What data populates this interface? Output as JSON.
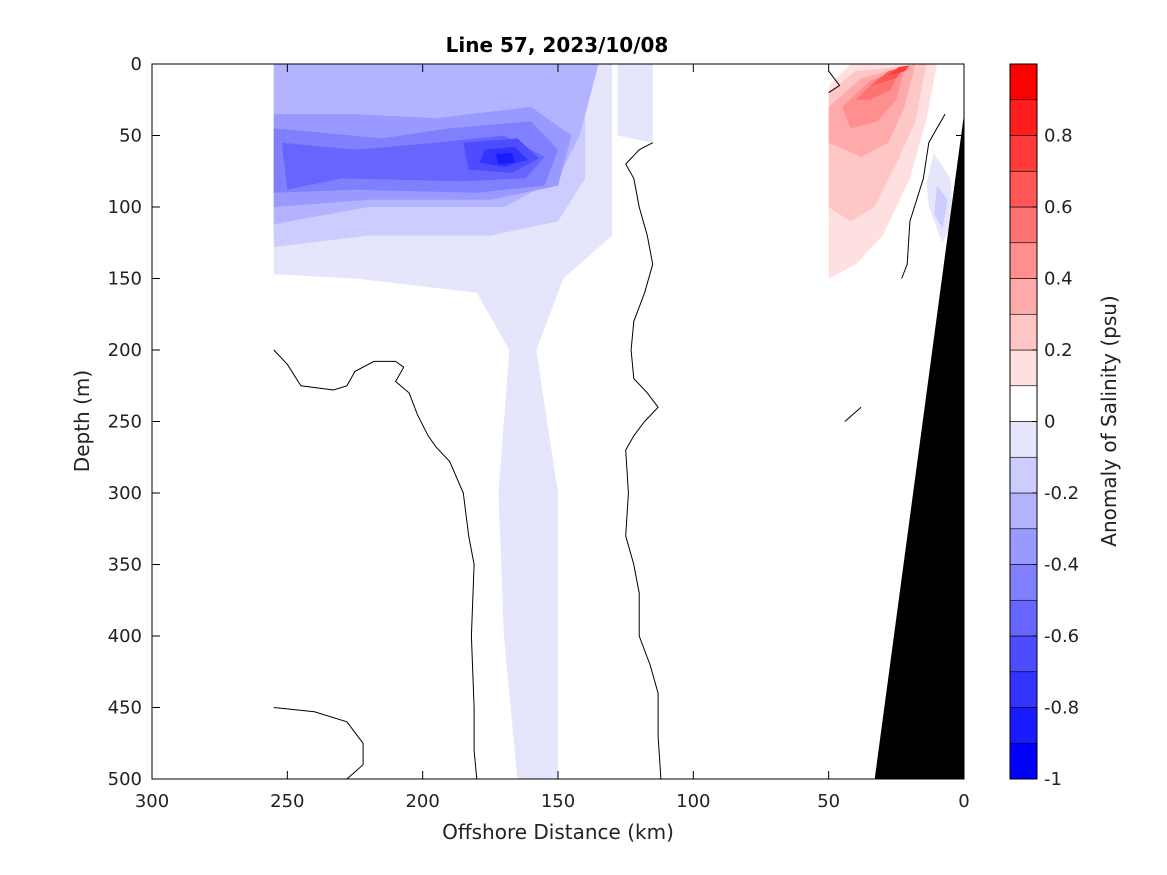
{
  "chart_data": {
    "type": "heatmap",
    "subtype": "filled-contour section",
    "title": "Line 57, 2023/10/08",
    "xlabel": "Offshore Distance (km)",
    "ylabel": "Depth (m)",
    "xlim": [
      300,
      0
    ],
    "x_reversed": true,
    "ylim": [
      0,
      500
    ],
    "y_reversed": true,
    "x_ticks": [
      "300",
      "250",
      "200",
      "150",
      "100",
      "50",
      "0"
    ],
    "x_tick_values": [
      300,
      250,
      200,
      150,
      100,
      50,
      0
    ],
    "y_ticks": [
      "0",
      "50",
      "100",
      "150",
      "200",
      "250",
      "300",
      "350",
      "400",
      "450",
      "500"
    ],
    "y_tick_values": [
      0,
      50,
      100,
      150,
      200,
      250,
      300,
      350,
      400,
      450,
      500
    ],
    "grid": false,
    "colorbar": {
      "label": "Anomaly of Salinity (psu)",
      "range": [
        -1,
        1
      ],
      "ticks": [
        "0.8",
        "0.6",
        "0.4",
        "0.2",
        "0",
        "-0.2",
        "-0.4",
        "-0.6",
        "-0.8",
        "-1"
      ],
      "tick_values": [
        0.8,
        0.6,
        0.4,
        0.2,
        0,
        -0.2,
        -0.4,
        -0.6,
        -0.8,
        -1
      ],
      "levels": [
        -1,
        -0.9,
        -0.8,
        -0.7,
        -0.6,
        -0.5,
        -0.4,
        -0.3,
        -0.2,
        -0.1,
        0,
        0.1,
        0.2,
        0.3,
        0.4,
        0.5,
        0.6,
        0.7,
        0.8,
        0.9,
        1
      ],
      "colors": [
        "#0000ff",
        "#1a1aff",
        "#3333ff",
        "#4d4dff",
        "#6666ff",
        "#8080ff",
        "#9999ff",
        "#b3b3ff",
        "#ccccff",
        "#e5e5fc",
        "#ffffff",
        "#ffffff",
        "#ffe0e0",
        "#ffc6c6",
        "#ffaaaa",
        "#ff8e8e",
        "#ff7272",
        "#ff5656",
        "#ff3a3a",
        "#ff1e1e",
        "#ff0000"
      ]
    },
    "seafloor_color": "#000000",
    "regions": [
      {
        "level": -0.1,
        "polygon": [
          [
            255,
            0
          ],
          [
            130,
            0
          ],
          [
            130,
            120
          ],
          [
            148,
            150
          ],
          [
            158,
            200
          ],
          [
            150,
            300
          ],
          [
            150,
            400
          ],
          [
            150,
            500
          ],
          [
            165,
            500
          ],
          [
            170,
            400
          ],
          [
            172,
            300
          ],
          [
            168,
            200
          ],
          [
            180,
            160
          ],
          [
            225,
            150
          ],
          [
            255,
            147
          ]
        ]
      },
      {
        "level": -0.1,
        "polygon": [
          [
            128,
            0
          ],
          [
            115,
            0
          ],
          [
            115,
            55
          ],
          [
            128,
            50
          ]
        ]
      },
      {
        "level": -0.2,
        "polygon": [
          [
            255,
            0
          ],
          [
            140,
            0
          ],
          [
            140,
            80
          ],
          [
            150,
            110
          ],
          [
            175,
            120
          ],
          [
            220,
            120
          ],
          [
            255,
            128
          ]
        ]
      },
      {
        "level": -0.3,
        "polygon": [
          [
            255,
            0
          ],
          [
            135,
            0
          ],
          [
            142,
            50
          ],
          [
            150,
            80
          ],
          [
            170,
            100
          ],
          [
            220,
            100
          ],
          [
            255,
            112
          ]
        ]
      },
      {
        "level": -0.4,
        "polygon": [
          [
            255,
            35
          ],
          [
            225,
            35
          ],
          [
            195,
            38
          ],
          [
            160,
            30
          ],
          [
            145,
            50
          ],
          [
            150,
            85
          ],
          [
            175,
            95
          ],
          [
            220,
            95
          ],
          [
            255,
            100
          ]
        ]
      },
      {
        "level": -0.5,
        "polygon": [
          [
            255,
            45
          ],
          [
            215,
            52
          ],
          [
            190,
            45
          ],
          [
            160,
            40
          ],
          [
            150,
            60
          ],
          [
            155,
            85
          ],
          [
            180,
            90
          ],
          [
            225,
            88
          ],
          [
            255,
            90
          ]
        ]
      },
      {
        "level": -0.6,
        "polygon": [
          [
            252,
            55
          ],
          [
            225,
            60
          ],
          [
            195,
            55
          ],
          [
            170,
            50
          ],
          [
            155,
            65
          ],
          [
            162,
            80
          ],
          [
            185,
            82
          ],
          [
            230,
            80
          ],
          [
            250,
            88
          ]
        ]
      },
      {
        "level": -0.7,
        "polygon": [
          [
            185,
            55
          ],
          [
            165,
            52
          ],
          [
            157,
            66
          ],
          [
            167,
            76
          ],
          [
            183,
            74
          ]
        ]
      },
      {
        "level": -0.8,
        "polygon": [
          [
            177,
            60
          ],
          [
            166,
            58
          ],
          [
            161,
            67
          ],
          [
            170,
            72
          ],
          [
            179,
            69
          ]
        ]
      },
      {
        "level": -0.9,
        "polygon": [
          [
            173,
            63
          ],
          [
            167,
            62
          ],
          [
            166,
            69
          ],
          [
            172,
            70
          ]
        ]
      },
      {
        "level": -0.1,
        "polygon": [
          [
            12,
            60
          ],
          [
            5,
            80
          ],
          [
            4,
            110
          ],
          [
            8,
            125
          ],
          [
            13,
            100
          ],
          [
            14,
            80
          ]
        ]
      },
      {
        "level": -0.2,
        "polygon": [
          [
            10,
            85
          ],
          [
            6,
            95
          ],
          [
            8,
            115
          ],
          [
            11,
            105
          ]
        ]
      },
      {
        "level": 0.1,
        "polygon": [
          [
            50,
            20
          ],
          [
            40,
            0
          ],
          [
            7,
            0
          ],
          [
            9,
            45
          ],
          [
            14,
            85
          ],
          [
            22,
            120
          ],
          [
            30,
            160
          ],
          [
            40,
            180
          ],
          [
            50,
            200
          ]
        ]
      },
      {
        "level": 0.1,
        "polygon": [
          [
            115,
            55
          ],
          [
            117,
            85
          ],
          [
            115,
            100
          ]
        ]
      },
      {
        "level": 0.2,
        "polygon": [
          [
            50,
            15
          ],
          [
            42,
            0
          ],
          [
            10,
            0
          ],
          [
            14,
            40
          ],
          [
            20,
            80
          ],
          [
            30,
            120
          ],
          [
            40,
            140
          ],
          [
            50,
            150
          ]
        ]
      },
      {
        "level": 0.3,
        "polygon": [
          [
            50,
            20
          ],
          [
            40,
            5
          ],
          [
            14,
            0
          ],
          [
            18,
            40
          ],
          [
            25,
            70
          ],
          [
            33,
            100
          ],
          [
            42,
            110
          ],
          [
            50,
            100
          ]
        ]
      },
      {
        "level": 0.4,
        "polygon": [
          [
            50,
            30
          ],
          [
            38,
            10
          ],
          [
            18,
            0
          ],
          [
            22,
            30
          ],
          [
            28,
            55
          ],
          [
            38,
            65
          ],
          [
            50,
            55
          ]
        ]
      },
      {
        "level": 0.5,
        "polygon": [
          [
            45,
            30
          ],
          [
            35,
            12
          ],
          [
            22,
            3
          ],
          [
            25,
            25
          ],
          [
            32,
            40
          ],
          [
            42,
            45
          ]
        ]
      },
      {
        "level": 0.6,
        "polygon": [
          [
            40,
            25
          ],
          [
            32,
            10
          ],
          [
            24,
            4
          ],
          [
            27,
            18
          ],
          [
            35,
            25
          ]
        ]
      },
      {
        "level": 0.7,
        "polygon": [
          [
            34,
            15
          ],
          [
            28,
            5
          ],
          [
            22,
            2
          ],
          [
            25,
            10
          ]
        ]
      },
      {
        "level": 0.8,
        "polygon": [
          [
            28,
            8
          ],
          [
            24,
            2
          ],
          [
            20,
            1
          ],
          [
            22,
            5
          ]
        ]
      }
    ],
    "zero_contours": [
      [
        [
          255,
          200
        ],
        [
          250,
          210
        ],
        [
          245,
          225
        ],
        [
          233,
          228
        ],
        [
          228,
          225
        ],
        [
          225,
          215
        ],
        [
          218,
          208
        ],
        [
          210,
          208
        ],
        [
          207,
          212
        ],
        [
          210,
          222
        ],
        [
          205,
          230
        ],
        [
          202,
          245
        ],
        [
          198,
          260
        ],
        [
          195,
          268
        ],
        [
          190,
          278
        ],
        [
          185,
          300
        ],
        [
          183,
          330
        ],
        [
          181,
          350
        ],
        [
          182,
          400
        ],
        [
          181,
          450
        ],
        [
          181,
          480
        ],
        [
          180,
          500
        ]
      ],
      [
        [
          115,
          55
        ],
        [
          120,
          60
        ],
        [
          125,
          70
        ],
        [
          122,
          80
        ],
        [
          120,
          100
        ],
        [
          117,
          120
        ],
        [
          115,
          140
        ],
        [
          118,
          160
        ],
        [
          122,
          180
        ],
        [
          123,
          200
        ],
        [
          122,
          220
        ],
        [
          117,
          230
        ],
        [
          113,
          240
        ],
        [
          118,
          250
        ],
        [
          122,
          260
        ],
        [
          125,
          270
        ],
        [
          124,
          300
        ],
        [
          125,
          330
        ],
        [
          122,
          350
        ],
        [
          120,
          370
        ],
        [
          120,
          400
        ],
        [
          116,
          420
        ],
        [
          113,
          440
        ],
        [
          113,
          470
        ],
        [
          112,
          500
        ]
      ],
      [
        [
          255,
          450
        ],
        [
          240,
          453
        ],
        [
          228,
          460
        ],
        [
          222,
          475
        ],
        [
          222,
          490
        ],
        [
          228,
          500
        ]
      ],
      [
        [
          50,
          20
        ],
        [
          46,
          15
        ],
        [
          48,
          10
        ],
        [
          50,
          5
        ]
      ],
      [
        [
          7,
          35
        ],
        [
          10,
          45
        ],
        [
          13,
          55
        ],
        [
          15,
          80
        ],
        [
          20,
          110
        ],
        [
          21,
          140
        ],
        [
          23,
          150
        ]
      ],
      [
        [
          44,
          250
        ],
        [
          38,
          240
        ]
      ]
    ],
    "seafloor": [
      [
        0,
        35
      ],
      [
        33,
        500
      ],
      [
        0,
        500
      ]
    ]
  }
}
